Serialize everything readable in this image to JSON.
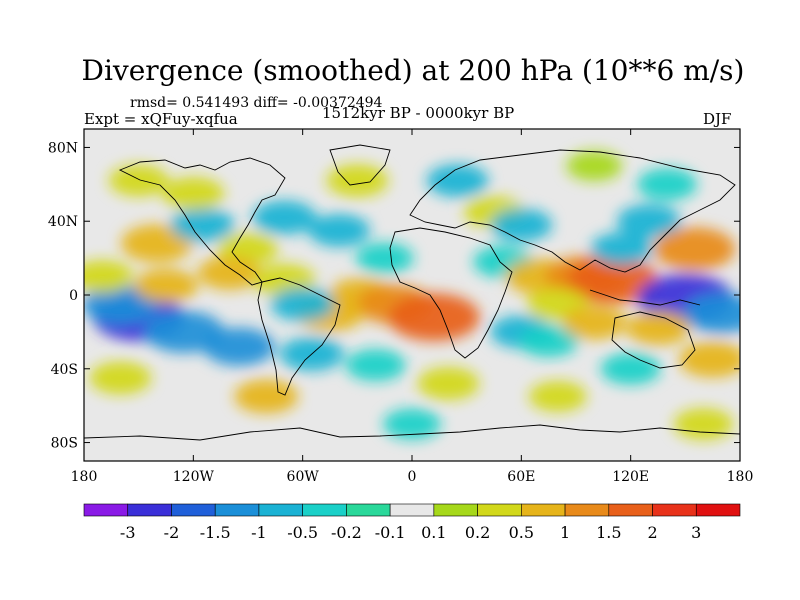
{
  "chart_data": {
    "type": "heatmap",
    "title": "Divergence (smoothed) at 200 hPa (10**6 m/s)",
    "stats_text": "rmsd= 0.541493 diff= -0.00372494",
    "left_label": "Expt = xQFuy-xqfua",
    "center_label": "1512kyr BP - 0000kyr BP",
    "right_label": "DJF",
    "x_ticks": [
      "180",
      "120W",
      "60W",
      "0",
      "60E",
      "120E",
      "180"
    ],
    "y_ticks": [
      "80N",
      "40N",
      "0",
      "40S",
      "80S"
    ],
    "x_range": [
      -180,
      180
    ],
    "y_range": [
      -90,
      90
    ],
    "colorbar": {
      "labels": [
        "-3",
        "-2",
        "-1.5",
        "-1",
        "-0.5",
        "-0.2",
        "-0.1",
        "0.1",
        "0.2",
        "0.5",
        "1",
        "1.5",
        "2",
        "3"
      ],
      "colors": [
        "#8a1ae6",
        "#3a2fd8",
        "#1f5fd9",
        "#1b8fd8",
        "#1ab2d4",
        "#1ad0c8",
        "#2ad89a",
        "#e8e8e8",
        "#a6d81a",
        "#d2d81a",
        "#e6b41a",
        "#e88a1a",
        "#e8601a",
        "#e8321a",
        "#e01010"
      ]
    },
    "anomalies": [
      {
        "lon": -150,
        "lat": -12,
        "value": -2.0
      },
      {
        "lon": -160,
        "lat": -5,
        "value": -1.2
      },
      {
        "lon": -125,
        "lat": -20,
        "value": -1.4
      },
      {
        "lon": -95,
        "lat": -28,
        "value": -1.0
      },
      {
        "lon": -135,
        "lat": 5,
        "value": 0.6
      },
      {
        "lon": -170,
        "lat": 10,
        "value": 0.5
      },
      {
        "lon": -140,
        "lat": 28,
        "value": 1.0
      },
      {
        "lon": -115,
        "lat": 38,
        "value": -0.6
      },
      {
        "lon": -120,
        "lat": 55,
        "value": 0.5
      },
      {
        "lon": -70,
        "lat": 42,
        "value": -0.6
      },
      {
        "lon": -90,
        "lat": 25,
        "value": 0.4
      },
      {
        "lon": -100,
        "lat": 12,
        "value": 0.6
      },
      {
        "lon": -70,
        "lat": 8,
        "value": 0.5
      },
      {
        "lon": -30,
        "lat": 62,
        "value": 0.5
      },
      {
        "lon": -40,
        "lat": 35,
        "value": -0.5
      },
      {
        "lon": -15,
        "lat": 20,
        "value": -0.3
      },
      {
        "lon": -28,
        "lat": 0,
        "value": 0.6
      },
      {
        "lon": -10,
        "lat": -5,
        "value": 1.2
      },
      {
        "lon": 12,
        "lat": -12,
        "value": 2.0
      },
      {
        "lon": -45,
        "lat": -10,
        "value": 0.8
      },
      {
        "lon": -60,
        "lat": -5,
        "value": -0.6
      },
      {
        "lon": -55,
        "lat": -32,
        "value": -0.6
      },
      {
        "lon": -80,
        "lat": -55,
        "value": 0.6
      },
      {
        "lon": -20,
        "lat": -38,
        "value": -0.4
      },
      {
        "lon": 20,
        "lat": -48,
        "value": 0.5
      },
      {
        "lon": 0,
        "lat": -70,
        "value": -0.3
      },
      {
        "lon": 25,
        "lat": 62,
        "value": -0.5
      },
      {
        "lon": 45,
        "lat": 45,
        "value": 0.4
      },
      {
        "lon": 60,
        "lat": 38,
        "value": -0.5
      },
      {
        "lon": 50,
        "lat": 18,
        "value": -0.4
      },
      {
        "lon": 70,
        "lat": 10,
        "value": 0.8
      },
      {
        "lon": 95,
        "lat": 10,
        "value": 1.4
      },
      {
        "lon": 110,
        "lat": 8,
        "value": 2.0
      },
      {
        "lon": 80,
        "lat": -5,
        "value": 0.5
      },
      {
        "lon": 60,
        "lat": -20,
        "value": -0.5
      },
      {
        "lon": 75,
        "lat": -25,
        "value": -0.4
      },
      {
        "lon": 100,
        "lat": -15,
        "value": 0.6
      },
      {
        "lon": 115,
        "lat": 25,
        "value": -0.5
      },
      {
        "lon": 130,
        "lat": 40,
        "value": -0.6
      },
      {
        "lon": 155,
        "lat": 25,
        "value": 1.5
      },
      {
        "lon": 150,
        "lat": -2,
        "value": -2.2
      },
      {
        "lon": 170,
        "lat": -10,
        "value": -1.2
      },
      {
        "lon": 135,
        "lat": -18,
        "value": 0.6
      },
      {
        "lon": 165,
        "lat": -35,
        "value": 0.8
      },
      {
        "lon": 120,
        "lat": -40,
        "value": -0.4
      },
      {
        "lon": 140,
        "lat": 60,
        "value": -0.4
      },
      {
        "lon": -150,
        "lat": 62,
        "value": 0.4
      },
      {
        "lon": 100,
        "lat": 70,
        "value": 0.2
      },
      {
        "lon": -160,
        "lat": -45,
        "value": 0.5
      },
      {
        "lon": 80,
        "lat": -55,
        "value": 0.3
      },
      {
        "lon": 160,
        "lat": -70,
        "value": 0.4
      }
    ]
  }
}
